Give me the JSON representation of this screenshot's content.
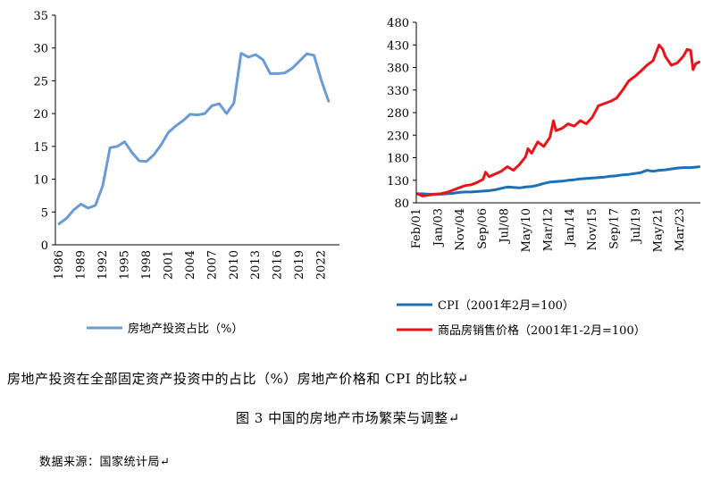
{
  "chart_data": [
    {
      "type": "line",
      "title": "",
      "xlabel": "",
      "ylabel": "",
      "ylim": [
        0,
        35
      ],
      "yticks": [
        0,
        5,
        10,
        15,
        20,
        25,
        30,
        35
      ],
      "xticks": [
        "1986",
        "1989",
        "1992",
        "1995",
        "1998",
        "2001",
        "2004",
        "2007",
        "2010",
        "2013",
        "2016",
        "2019",
        "2022"
      ],
      "grid": false,
      "legend": "bottom",
      "colors": {
        "series": "#6a9bd4",
        "axis": "#000000"
      },
      "series": [
        {
          "name": "房地产投资占比（%）",
          "x": [
            1986,
            1987,
            1988,
            1989,
            1990,
            1991,
            1992,
            1993,
            1994,
            1995,
            1996,
            1997,
            1998,
            1999,
            2000,
            2001,
            2002,
            2003,
            2004,
            2005,
            2006,
            2007,
            2008,
            2009,
            2010,
            2011,
            2012,
            2013,
            2014,
            2015,
            2016,
            2017,
            2018,
            2019,
            2020,
            2021,
            2022,
            2023
          ],
          "values": [
            3.2,
            4.0,
            5.3,
            6.2,
            5.6,
            6.0,
            9.0,
            14.8,
            15.0,
            15.7,
            14.1,
            12.8,
            12.7,
            13.7,
            15.2,
            17.1,
            18.1,
            18.9,
            19.9,
            19.8,
            20.0,
            21.2,
            21.5,
            20.0,
            21.6,
            29.2,
            28.6,
            29.0,
            28.2,
            26.1,
            26.1,
            26.2,
            26.9,
            28.0,
            29.1,
            28.9,
            25.1,
            21.9
          ]
        }
      ]
    },
    {
      "type": "line",
      "title": "",
      "xlabel": "",
      "ylabel": "",
      "ylim": [
        80,
        480
      ],
      "yticks": [
        80,
        130,
        180,
        230,
        280,
        330,
        380,
        430,
        480
      ],
      "xticks": [
        "Feb/01",
        "Jan/03",
        "Nov/04",
        "Sep/06",
        "Jul/08",
        "May/10",
        "Mar/12",
        "Jan/14",
        "Nov/15",
        "Sep/17",
        "Jul/19",
        "May/21",
        "Mar/23"
      ],
      "grid": false,
      "legend": "bottom",
      "colors": {
        "cpi": "#1f6fb5",
        "price": "#e8141b",
        "axis": "#000000"
      },
      "series": [
        {
          "name": "CPI（2001年2月=100）",
          "x": [
            2001.1,
            2001.5,
            2002.0,
            2002.5,
            2003.0,
            2003.5,
            2004.0,
            2004.5,
            2005.0,
            2005.5,
            2006.0,
            2006.5,
            2007.0,
            2007.5,
            2008.0,
            2008.5,
            2009.0,
            2009.5,
            2010.0,
            2010.5,
            2011.0,
            2011.5,
            2012.0,
            2012.5,
            2013.0,
            2013.5,
            2014.0,
            2014.5,
            2015.0,
            2015.5,
            2016.0,
            2016.5,
            2017.0,
            2017.5,
            2018.0,
            2018.5,
            2019.0,
            2019.5,
            2020.0,
            2020.5,
            2021.0,
            2021.5,
            2022.0,
            2022.5,
            2023.0,
            2023.5,
            2024.0,
            2024.3
          ],
          "values": [
            100,
            100,
            99,
            99,
            99,
            100,
            101,
            103,
            104,
            104,
            105,
            106,
            107,
            109,
            112,
            115,
            114,
            113,
            115,
            116,
            119,
            123,
            126,
            127,
            128,
            130,
            131,
            133,
            134,
            135,
            136,
            137,
            139,
            140,
            142,
            143,
            145,
            147,
            152,
            150,
            152,
            153,
            155,
            157,
            158,
            158,
            159,
            160
          ]
        },
        {
          "name": "商品房销售价格（2001年1-2月=100）",
          "x": [
            2001.1,
            2001.5,
            2002.0,
            2002.5,
            2003.0,
            2003.5,
            2004.0,
            2004.5,
            2005.0,
            2005.5,
            2006.0,
            2006.5,
            2006.7,
            2007.0,
            2007.5,
            2008.0,
            2008.5,
            2009.0,
            2009.5,
            2010.0,
            2010.2,
            2010.5,
            2011.0,
            2011.5,
            2012.0,
            2012.3,
            2012.5,
            2013.0,
            2013.5,
            2014.0,
            2014.5,
            2015.0,
            2015.5,
            2016.0,
            2016.5,
            2017.0,
            2017.5,
            2018.0,
            2018.5,
            2019.0,
            2019.5,
            2020.0,
            2020.5,
            2021.0,
            2021.3,
            2021.5,
            2022.0,
            2022.5,
            2023.0,
            2023.3,
            2023.6,
            2023.8,
            2024.0,
            2024.3
          ],
          "values": [
            100,
            95,
            97,
            99,
            100,
            103,
            108,
            113,
            118,
            120,
            125,
            132,
            148,
            138,
            144,
            150,
            160,
            152,
            165,
            182,
            200,
            190,
            215,
            205,
            225,
            262,
            240,
            245,
            255,
            250,
            262,
            255,
            270,
            295,
            300,
            305,
            312,
            330,
            350,
            360,
            372,
            385,
            395,
            430,
            420,
            405,
            385,
            390,
            405,
            420,
            418,
            375,
            388,
            392
          ]
        }
      ]
    }
  ],
  "caption_1": "房地产投资在全部固定资产投资中的占比（%）房地产价格和 CPI 的比较↵",
  "caption_2": "图 3 中国的房地产市场繁荣与调整↵",
  "source": "数据来源：国家统计局↵"
}
